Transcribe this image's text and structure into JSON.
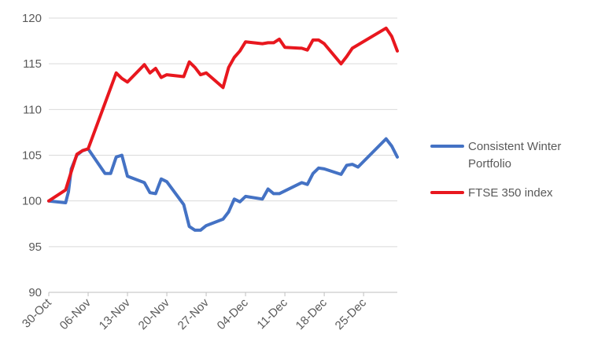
{
  "chart_data": {
    "type": "line",
    "title": "",
    "xlabel": "",
    "ylabel": "",
    "ylim": [
      90,
      120
    ],
    "yticks": [
      90,
      95,
      100,
      105,
      110,
      115,
      120
    ],
    "xticks": [
      "30-Oct",
      "06-Nov",
      "13-Nov",
      "20-Nov",
      "27-Nov",
      "04-Dec",
      "11-Dec",
      "18-Dec",
      "25-Dec"
    ],
    "grid": "horizontal",
    "legend_position": "right",
    "series": [
      {
        "name": "Consistent Winter Portfolio",
        "color": "#4472C4",
        "points": [
          {
            "x": 0,
            "y": 100.0
          },
          {
            "x": 3,
            "y": 99.8
          },
          {
            "x": 3.5,
            "y": 101.0
          },
          {
            "x": 4,
            "y": 103.5
          },
          {
            "x": 5,
            "y": 105.0
          },
          {
            "x": 6,
            "y": 105.5
          },
          {
            "x": 7,
            "y": 105.7
          },
          {
            "x": 10,
            "y": 103.0
          },
          {
            "x": 11,
            "y": 103.0
          },
          {
            "x": 12,
            "y": 104.8
          },
          {
            "x": 13,
            "y": 105.0
          },
          {
            "x": 14,
            "y": 102.7
          },
          {
            "x": 17,
            "y": 102.0
          },
          {
            "x": 18,
            "y": 100.9
          },
          {
            "x": 19,
            "y": 100.8
          },
          {
            "x": 20,
            "y": 102.4
          },
          {
            "x": 21,
            "y": 102.1
          },
          {
            "x": 24,
            "y": 99.6
          },
          {
            "x": 25,
            "y": 97.2
          },
          {
            "x": 26,
            "y": 96.8
          },
          {
            "x": 27,
            "y": 96.8
          },
          {
            "x": 28,
            "y": 97.3
          },
          {
            "x": 31,
            "y": 98.0
          },
          {
            "x": 32,
            "y": 98.8
          },
          {
            "x": 33,
            "y": 100.2
          },
          {
            "x": 34,
            "y": 99.9
          },
          {
            "x": 35,
            "y": 100.5
          },
          {
            "x": 38,
            "y": 100.2
          },
          {
            "x": 39,
            "y": 101.3
          },
          {
            "x": 40,
            "y": 100.8
          },
          {
            "x": 41,
            "y": 100.8
          },
          {
            "x": 42,
            "y": 101.1
          },
          {
            "x": 45,
            "y": 102.0
          },
          {
            "x": 46,
            "y": 101.8
          },
          {
            "x": 47,
            "y": 103.0
          },
          {
            "x": 48,
            "y": 103.6
          },
          {
            "x": 49,
            "y": 103.5
          },
          {
            "x": 52,
            "y": 102.9
          },
          {
            "x": 53,
            "y": 103.9
          },
          {
            "x": 54,
            "y": 104.0
          },
          {
            "x": 55,
            "y": 103.7
          },
          {
            "x": 60,
            "y": 106.8
          },
          {
            "x": 61,
            "y": 106.0
          },
          {
            "x": 62,
            "y": 104.8
          }
        ]
      },
      {
        "name": "FTSE 350 index",
        "color": "#E8171E",
        "points": [
          {
            "x": 0,
            "y": 100.0
          },
          {
            "x": 3,
            "y": 101.2
          },
          {
            "x": 4,
            "y": 103.2
          },
          {
            "x": 5,
            "y": 105.1
          },
          {
            "x": 6,
            "y": 105.5
          },
          {
            "x": 7,
            "y": 105.7
          },
          {
            "x": 12,
            "y": 114.0
          },
          {
            "x": 13,
            "y": 113.4
          },
          {
            "x": 14,
            "y": 113.0
          },
          {
            "x": 17,
            "y": 114.9
          },
          {
            "x": 18,
            "y": 114.0
          },
          {
            "x": 19,
            "y": 114.5
          },
          {
            "x": 20,
            "y": 113.5
          },
          {
            "x": 21,
            "y": 113.8
          },
          {
            "x": 24,
            "y": 113.6
          },
          {
            "x": 25,
            "y": 115.2
          },
          {
            "x": 26,
            "y": 114.6
          },
          {
            "x": 27,
            "y": 113.8
          },
          {
            "x": 28,
            "y": 114.0
          },
          {
            "x": 31,
            "y": 112.4
          },
          {
            "x": 32,
            "y": 114.6
          },
          {
            "x": 33,
            "y": 115.7
          },
          {
            "x": 34,
            "y": 116.4
          },
          {
            "x": 35,
            "y": 117.4
          },
          {
            "x": 38,
            "y": 117.2
          },
          {
            "x": 39,
            "y": 117.3
          },
          {
            "x": 40,
            "y": 117.3
          },
          {
            "x": 41,
            "y": 117.7
          },
          {
            "x": 42,
            "y": 116.8
          },
          {
            "x": 45,
            "y": 116.7
          },
          {
            "x": 46,
            "y": 116.5
          },
          {
            "x": 47,
            "y": 117.6
          },
          {
            "x": 48,
            "y": 117.6
          },
          {
            "x": 49,
            "y": 117.2
          },
          {
            "x": 52,
            "y": 115.0
          },
          {
            "x": 53,
            "y": 115.8
          },
          {
            "x": 54,
            "y": 116.7
          },
          {
            "x": 60,
            "y": 118.9
          },
          {
            "x": 61,
            "y": 118.0
          },
          {
            "x": 62,
            "y": 116.4
          }
        ]
      }
    ]
  }
}
